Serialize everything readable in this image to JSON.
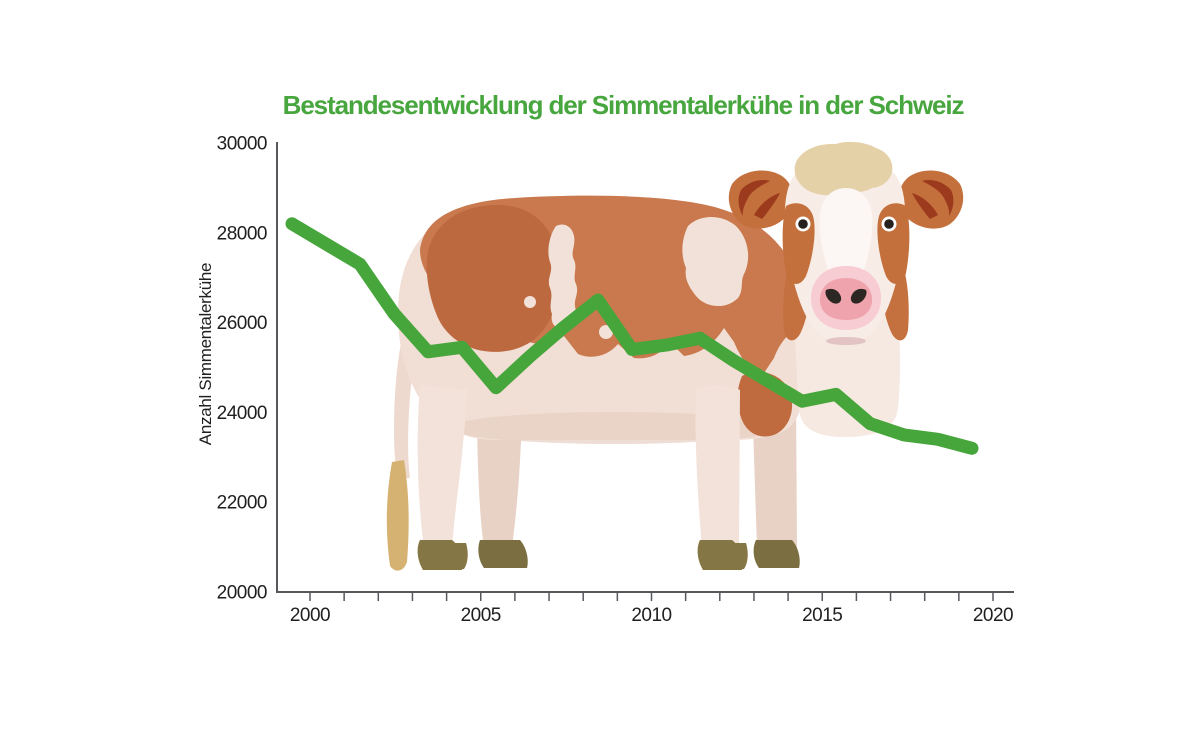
{
  "chart": {
    "title": "Bestandesentwicklung der Simmentalerkühe in der Schweiz",
    "title_color": "#47a63e",
    "ylabel": "Anzahl Simmentalerkühe",
    "illustration": "simmental-cow"
  },
  "chart_data": {
    "type": "line",
    "title": "Bestandesentwicklung der Simmentalerkühe in der Schweiz",
    "xlabel": "",
    "ylabel": "Anzahl Simmentalerkühe",
    "x": [
      1999,
      2000,
      2001,
      2002,
      2003,
      2004,
      2005,
      2006,
      2007,
      2008,
      2009,
      2010,
      2011,
      2012,
      2013,
      2014,
      2015,
      2016,
      2017,
      2018,
      2019
    ],
    "series": [
      {
        "name": "Anzahl Simmentalerkühe",
        "values": [
          28200,
          27750,
          27300,
          26200,
          25350,
          25450,
          24550,
          25250,
          25900,
          26500,
          25400,
          25500,
          25650,
          25150,
          24700,
          24250,
          24400,
          23750,
          23500,
          23400,
          23200
        ]
      }
    ],
    "ylim": [
      20000,
      30000
    ],
    "xlim": [
      1999,
      2020.6
    ],
    "yticks": [
      20000,
      22000,
      24000,
      26000,
      28000,
      30000
    ],
    "ytick_labels": [
      "20000",
      "22000",
      "24000",
      "26000",
      "28000",
      "30000"
    ],
    "xticks_all": [
      2000,
      2001,
      2002,
      2003,
      2004,
      2005,
      2006,
      2007,
      2008,
      2009,
      2010,
      2011,
      2012,
      2013,
      2014,
      2015,
      2016,
      2017,
      2018,
      2019,
      2020
    ],
    "xticks_labeled": [
      2000,
      2005,
      2010,
      2015,
      2020
    ],
    "xtick_labels": [
      "2000",
      "2005",
      "2010",
      "2015",
      "2020"
    ],
    "grid": false,
    "legend": "none",
    "line_color": "#47a63b",
    "line_width": 13,
    "axis_color": "#57585c"
  }
}
